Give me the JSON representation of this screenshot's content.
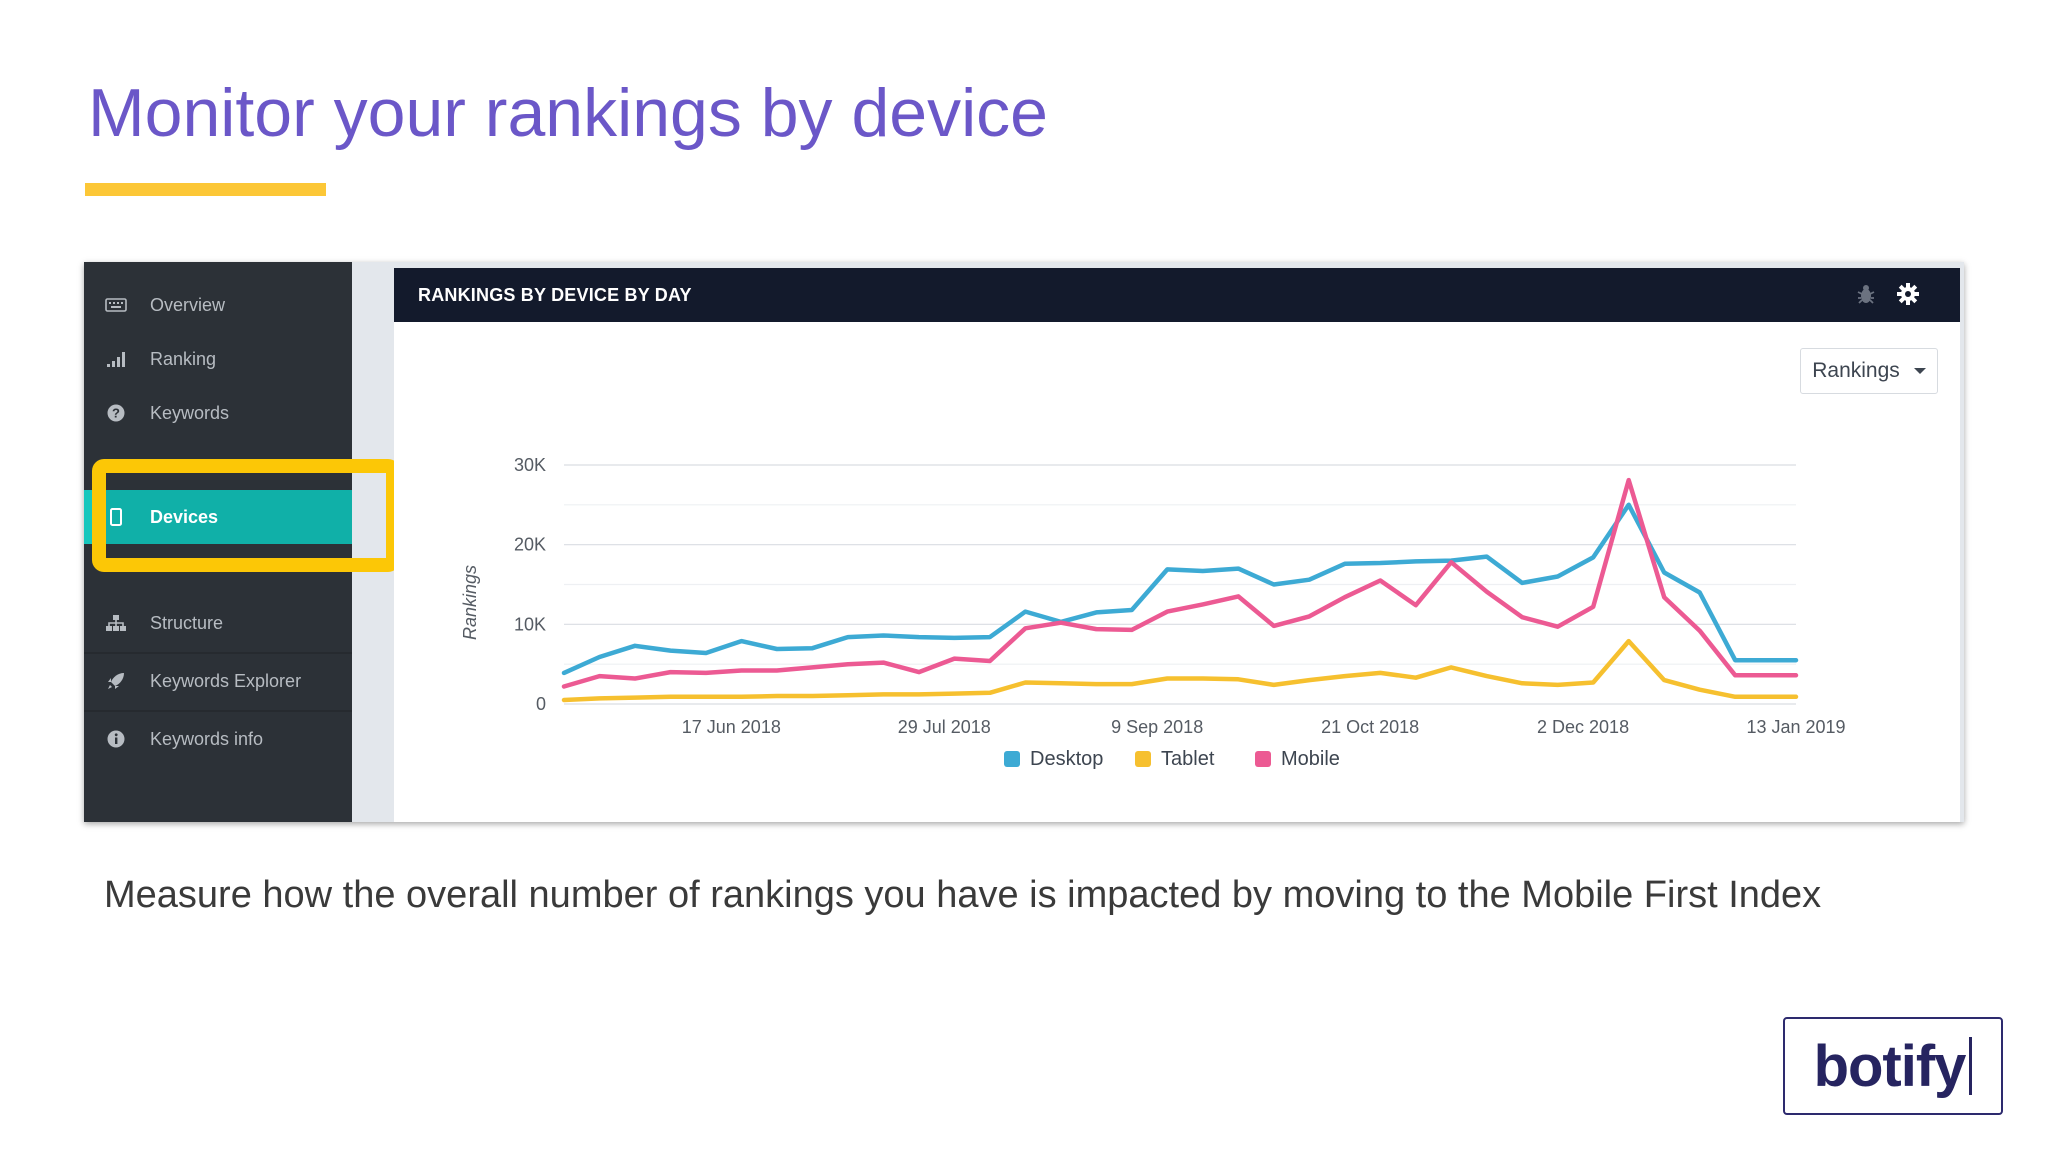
{
  "slide": {
    "title": "Monitor your rankings by device",
    "caption": "Measure how the overall number of rankings you have is impacted by moving to the Mobile First Index",
    "logo_text": "botify",
    "accent_color": "#fcc737",
    "title_color": "#6b57c8"
  },
  "sidebar": {
    "items": [
      {
        "label": "Overview",
        "icon": "keyboard-icon"
      },
      {
        "label": "Ranking",
        "icon": "signal-bars-icon"
      },
      {
        "label": "Keywords",
        "icon": "question-circle-icon"
      },
      {
        "label": "Devices",
        "icon": "mobile-icon",
        "active": true
      },
      {
        "label": "Structure",
        "icon": "sitemap-icon"
      },
      {
        "label": "Keywords Explorer",
        "icon": "rocket-icon"
      },
      {
        "label": "Keywords info",
        "icon": "info-circle-icon"
      }
    ],
    "active_color": "#10b0a8",
    "highlight_color": "#fcc706"
  },
  "panel": {
    "title": "RANKINGS BY DEVICE BY DAY",
    "icons": [
      "bug-icon",
      "gear-icon"
    ],
    "metric_select": "Rankings"
  },
  "chart_data": {
    "type": "line",
    "title": "RANKINGS BY DEVICE BY DAY",
    "xlabel": "",
    "ylabel": "Rankings",
    "ylim": [
      0,
      30000
    ],
    "yticks": [
      0,
      10000,
      20000,
      30000
    ],
    "ytick_labels": [
      "0",
      "10K",
      "20K",
      "30K"
    ],
    "xlim": [
      "2018-05-15",
      "2019-01-13"
    ],
    "xtick_labels": [
      "17 Jun 2018",
      "29 Jul 2018",
      "9 Sep 2018",
      "21 Oct 2018",
      "2 Dec 2018",
      "13 Jan 2019"
    ],
    "xticks": [
      "2018-06-17",
      "2018-07-29",
      "2018-09-09",
      "2018-10-21",
      "2018-12-02",
      "2019-01-13"
    ],
    "grid": true,
    "legend_position": "bottom",
    "x": [
      "2018-05-15",
      "2018-05-22",
      "2018-05-29",
      "2018-06-05",
      "2018-06-12",
      "2018-06-19",
      "2018-06-26",
      "2018-07-03",
      "2018-07-10",
      "2018-07-17",
      "2018-07-24",
      "2018-07-31",
      "2018-08-07",
      "2018-08-14",
      "2018-08-21",
      "2018-08-28",
      "2018-09-04",
      "2018-09-11",
      "2018-09-18",
      "2018-09-25",
      "2018-10-02",
      "2018-10-09",
      "2018-10-16",
      "2018-10-23",
      "2018-10-30",
      "2018-11-06",
      "2018-11-13",
      "2018-11-20",
      "2018-11-27",
      "2018-12-04",
      "2018-12-11",
      "2018-12-18",
      "2018-12-25",
      "2019-01-01",
      "2019-01-08",
      "2019-01-13"
    ],
    "series": [
      {
        "name": "Desktop",
        "color": "#3daad4",
        "values": [
          3900,
          5900,
          7300,
          6700,
          6400,
          7900,
          6900,
          7000,
          8400,
          8600,
          8400,
          8300,
          8400,
          11600,
          10300,
          11500,
          11800,
          16900,
          16700,
          17000,
          15000,
          15600,
          17600,
          17700,
          17900,
          18000,
          18500,
          15200,
          16000,
          18400,
          25000,
          16500,
          14000,
          5500,
          5500,
          5500
        ]
      },
      {
        "name": "Tablet",
        "color": "#f6c02f",
        "values": [
          500,
          700,
          800,
          900,
          900,
          900,
          1000,
          1000,
          1100,
          1200,
          1200,
          1300,
          1400,
          2700,
          2600,
          2500,
          2500,
          3200,
          3200,
          3100,
          2400,
          3000,
          3500,
          3900,
          3300,
          4600,
          3500,
          2600,
          2400,
          2700,
          7900,
          3000,
          1800,
          900,
          900,
          900
        ]
      },
      {
        "name": "Mobile",
        "color": "#ec5a93",
        "values": [
          2200,
          3500,
          3200,
          4000,
          3900,
          4200,
          4200,
          4600,
          5000,
          5200,
          4000,
          5700,
          5400,
          9500,
          10200,
          9400,
          9300,
          11600,
          12500,
          13500,
          9800,
          11000,
          13400,
          15500,
          12400,
          17800,
          14100,
          10900,
          9700,
          12200,
          28100,
          13400,
          9200,
          3600,
          3600,
          3600
        ]
      }
    ]
  }
}
